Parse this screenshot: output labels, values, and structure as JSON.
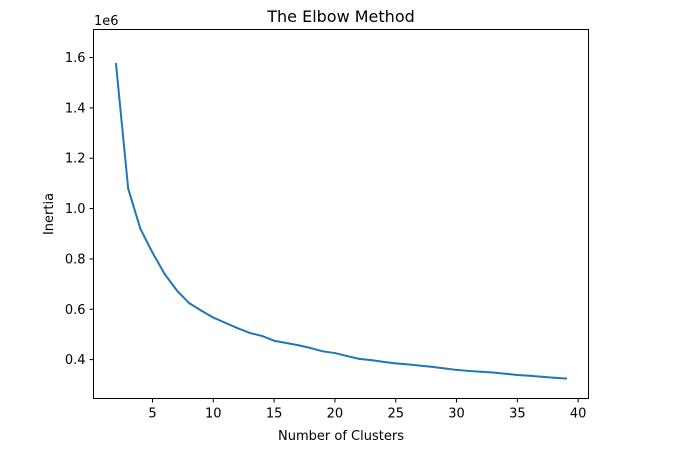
{
  "chart_data": {
    "type": "line",
    "title": "The Elbow Method",
    "xlabel": "Number of Clusters",
    "ylabel": "Inertia",
    "y_offset_label": "1e6",
    "xlim": [
      0.15,
      40.85
    ],
    "ylim": [
      0.2455,
      1.7115
    ],
    "xticks": [
      5,
      10,
      15,
      20,
      25,
      30,
      35,
      40
    ],
    "yticks": [
      0.4,
      0.6,
      0.8,
      1.0,
      1.2,
      1.4,
      1.6
    ],
    "ytick_labels": [
      "0.4",
      "0.6",
      "0.8",
      "1.0",
      "1.2",
      "1.4",
      "1.6"
    ],
    "grid": false,
    "series": [
      {
        "color": "#1f77b4",
        "x": [
          2,
          3,
          4,
          5,
          6,
          7,
          8,
          9,
          10,
          11,
          12,
          13,
          14,
          15,
          16,
          17,
          18,
          19,
          20,
          21,
          22,
          23,
          24,
          25,
          26,
          27,
          28,
          29,
          30,
          31,
          32,
          33,
          34,
          35,
          36,
          37,
          38,
          39
        ],
        "y": [
          1.575,
          1.08,
          0.92,
          0.825,
          0.74,
          0.675,
          0.625,
          0.595,
          0.567,
          0.546,
          0.525,
          0.506,
          0.494,
          0.475,
          0.466,
          0.457,
          0.446,
          0.433,
          0.426,
          0.414,
          0.403,
          0.398,
          0.391,
          0.385,
          0.381,
          0.376,
          0.371,
          0.365,
          0.359,
          0.355,
          0.352,
          0.349,
          0.344,
          0.339,
          0.336,
          0.332,
          0.328,
          0.325
        ]
      }
    ]
  }
}
